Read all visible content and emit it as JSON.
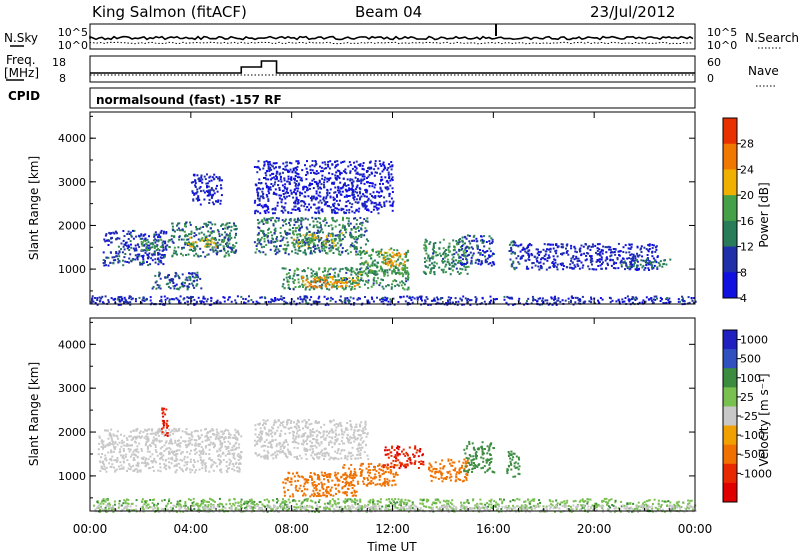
{
  "header": {
    "station": "King Salmon (fitACF)",
    "beam": "Beam 04",
    "date": "23/Jul/2012"
  },
  "noise_panel": {
    "left_label": "N.Sky",
    "left_ticks": [
      "10^5",
      "10^0"
    ],
    "right_label": "N.Search",
    "right_ticks": [
      "10^5",
      "10^0"
    ]
  },
  "freq_panel": {
    "left_label_1": "Freq.",
    "left_label_2": "[MHz]",
    "left_ticks": [
      "18",
      "8"
    ],
    "right_label": "Nave",
    "right_ticks": [
      "60",
      "0"
    ]
  },
  "cpid": {
    "label": "CPID",
    "mode": "normalsound (fast) -157 RF"
  },
  "colors": {
    "power": [
      "#1010e0",
      "#2030a8",
      "#287c5a",
      "#46a048",
      "#f0b000",
      "#f07800",
      "#e83000"
    ],
    "velocity": [
      "#2020c0",
      "#3050c0",
      "#3c8c40",
      "#78c050",
      "#c8c8c8",
      "#f0a000",
      "#f07000",
      "#e82800",
      "#e00000"
    ],
    "ground_scatter": "#c8c8c8"
  },
  "chart_data": [
    {
      "type": "heatmap",
      "name": "power",
      "x_ticks": [
        "00:00",
        "04:00",
        "08:00",
        "12:00",
        "16:00",
        "20:00",
        "00:00"
      ],
      "xlim": [
        0,
        24
      ],
      "xlabel": "Time UT",
      "y_ticks": [
        "1000",
        "2000",
        "3000",
        "4000"
      ],
      "ylim": [
        200,
        4600
      ],
      "ylabel": "Slant Range [km]",
      "colorbar": {
        "label": "Power [dB]",
        "ticks": [
          "4",
          "8",
          "12",
          "16",
          "20",
          "24",
          "28"
        ],
        "range": [
          0,
          30
        ]
      },
      "regions": [
        {
          "t": [
            0.5,
            3.0
          ],
          "r": [
            1100,
            1900
          ],
          "value": 6
        },
        {
          "t": [
            2.0,
            3.2
          ],
          "r": [
            1450,
            1700
          ],
          "value": 12
        },
        {
          "t": [
            3.2,
            5.8
          ],
          "r": [
            1300,
            2100
          ],
          "value": 10
        },
        {
          "t": [
            3.8,
            5.0
          ],
          "r": [
            1500,
            1750
          ],
          "value": 16
        },
        {
          "t": [
            2.4,
            4.4
          ],
          "r": [
            550,
            950
          ],
          "value": 8
        },
        {
          "t": [
            4.0,
            5.2
          ],
          "r": [
            2500,
            3200
          ],
          "value": 4
        },
        {
          "t": [
            6.5,
            11.0
          ],
          "r": [
            1350,
            2200
          ],
          "value": 10
        },
        {
          "t": [
            8.0,
            10.0
          ],
          "r": [
            1550,
            1850
          ],
          "value": 16
        },
        {
          "t": [
            7.6,
            12.6
          ],
          "r": [
            550,
            1050
          ],
          "value": 12
        },
        {
          "t": [
            8.4,
            10.6
          ],
          "r": [
            600,
            850
          ],
          "value": 22
        },
        {
          "t": [
            10.6,
            12.6
          ],
          "r": [
            900,
            1500
          ],
          "value": 14
        },
        {
          "t": [
            11.6,
            12.5
          ],
          "r": [
            1100,
            1400
          ],
          "value": 20
        },
        {
          "t": [
            6.5,
            12.0
          ],
          "r": [
            2300,
            3500
          ],
          "value": 3
        },
        {
          "t": [
            13.2,
            15.0
          ],
          "r": [
            900,
            1700
          ],
          "value": 12
        },
        {
          "t": [
            14.6,
            16.0
          ],
          "r": [
            1100,
            1800
          ],
          "value": 6
        },
        {
          "t": [
            16.6,
            17.0
          ],
          "r": [
            1000,
            1700
          ],
          "value": 8
        },
        {
          "t": [
            17.0,
            22.5
          ],
          "r": [
            1000,
            1600
          ],
          "value": 4
        },
        {
          "t": [
            21.0,
            23.0
          ],
          "r": [
            1050,
            1250
          ],
          "value": 10
        },
        {
          "t": [
            0.0,
            24.0
          ],
          "r": [
            200,
            400
          ],
          "value": 5
        }
      ]
    },
    {
      "type": "heatmap",
      "name": "velocity",
      "x_ticks": [
        "00:00",
        "04:00",
        "08:00",
        "12:00",
        "16:00",
        "20:00",
        "00:00"
      ],
      "xlim": [
        0,
        24
      ],
      "xlabel": "Time UT",
      "y_ticks": [
        "1000",
        "2000",
        "3000",
        "4000"
      ],
      "ylim": [
        200,
        4600
      ],
      "ylabel": "Slant Range [km]",
      "colorbar": {
        "label": "Velocity [m s⁻¹]",
        "ticks": [
          "1000",
          "500",
          "100",
          "25",
          "-25",
          "-100",
          "-500",
          "-1000"
        ],
        "range": [
          -1000,
          1000
        ]
      },
      "regions": [
        {
          "t": [
            0.3,
            6.0
          ],
          "r": [
            1100,
            2100
          ],
          "value": "gs"
        },
        {
          "t": [
            6.5,
            11.0
          ],
          "r": [
            1400,
            2300
          ],
          "value": "gs"
        },
        {
          "t": [
            7.6,
            10.6
          ],
          "r": [
            550,
            1100
          ],
          "value": -300
        },
        {
          "t": [
            10.0,
            12.2
          ],
          "r": [
            800,
            1300
          ],
          "value": -350
        },
        {
          "t": [
            11.6,
            13.2
          ],
          "r": [
            1200,
            1700
          ],
          "value": -900
        },
        {
          "t": [
            13.4,
            15.0
          ],
          "r": [
            900,
            1400
          ],
          "value": -250
        },
        {
          "t": [
            14.8,
            16.0
          ],
          "r": [
            1100,
            1800
          ],
          "value": 300
        },
        {
          "t": [
            16.5,
            17.0
          ],
          "r": [
            1000,
            1600
          ],
          "value": 200
        },
        {
          "t": [
            2.8,
            3.1
          ],
          "r": [
            1900,
            2600
          ],
          "value": -900
        },
        {
          "t": [
            0.0,
            24.0
          ],
          "r": [
            200,
            500
          ],
          "value": 80
        },
        {
          "t": [
            0.0,
            24.0
          ],
          "r": [
            200,
            350
          ],
          "value": "gs"
        }
      ]
    }
  ]
}
